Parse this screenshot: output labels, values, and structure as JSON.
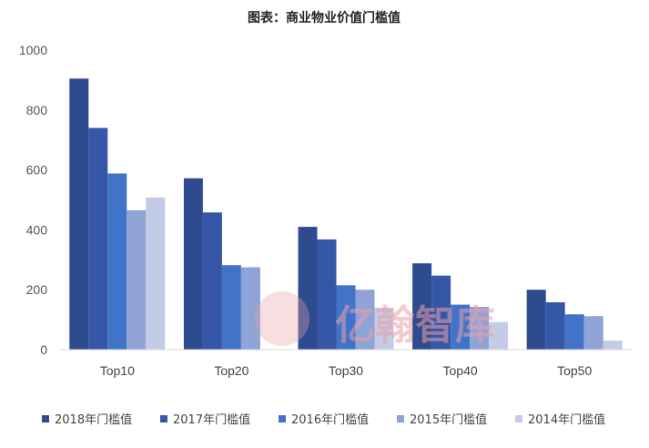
{
  "chart_data": {
    "type": "bar",
    "title": "图表：商业物业价值门槛值",
    "categories": [
      "Top10",
      "Top20",
      "Top30",
      "Top40",
      "Top50"
    ],
    "series": [
      {
        "name": "2018年门槛值",
        "color": "#2f4b8f",
        "values": [
          905,
          572,
          410,
          288,
          200
        ]
      },
      {
        "name": "2017年门槛值",
        "color": "#3657a7",
        "values": [
          740,
          458,
          368,
          247,
          158
        ]
      },
      {
        "name": "2016年门槛值",
        "color": "#4174c9",
        "values": [
          588,
          282,
          215,
          150,
          118
        ]
      },
      {
        "name": "2015年门槛值",
        "color": "#8fa3d7",
        "values": [
          465,
          275,
          200,
          143,
          112
        ]
      },
      {
        "name": "2014年门槛值",
        "color": "#c4cbe6",
        "values": [
          508,
          0,
          140,
          92,
          30
        ]
      }
    ],
    "ylim": [
      0,
      1000
    ],
    "yticks": [
      0,
      200,
      400,
      600,
      800,
      1000
    ],
    "grid": false,
    "legend_position": "bottom",
    "watermark": "亿翰智库"
  }
}
